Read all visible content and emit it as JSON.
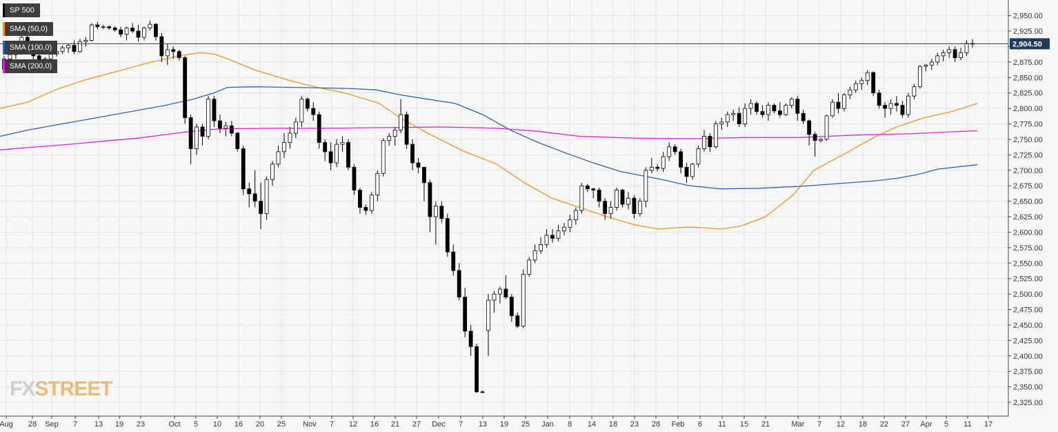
{
  "chart_data": {
    "type": "candlestick",
    "title": "SP 500",
    "current_price_label": "2,904.50",
    "current_price": 2904.5,
    "ylim": [
      2312,
      2968
    ],
    "y_ticks": [
      2325,
      2350,
      2375,
      2400,
      2425,
      2450,
      2475,
      2500,
      2525,
      2550,
      2575,
      2600,
      2625,
      2650,
      2675,
      2700,
      2725,
      2750,
      2775,
      2800,
      2825,
      2850,
      2875,
      2900,
      2925,
      2950
    ],
    "y_tick_labels": [
      "2,325.00",
      "2,350.00",
      "2,375.00",
      "2,400.00",
      "2,425.00",
      "2,450.00",
      "2,475.00",
      "2,500.00",
      "2,525.00",
      "2,550.00",
      "2,575.00",
      "2,600.00",
      "2,625.00",
      "2,650.00",
      "2,675.00",
      "2,700.00",
      "2,725.00",
      "2,750.00",
      "2,775.00",
      "2,800.00",
      "2,825.00",
      "2,850.00",
      "2,875.00",
      "2,900.00",
      "2,925.00",
      "2,950.00"
    ],
    "x_tick_labels": [
      "Aug",
      "28",
      "Sep",
      "7",
      "13",
      "19",
      "23",
      "Oct",
      "5",
      "10",
      "16",
      "20",
      "25",
      "Nov",
      "7",
      "12",
      "16",
      "21",
      "27",
      "Dec",
      "7",
      "13",
      "19",
      "25",
      "Jan",
      "8",
      "14",
      "18",
      "23",
      "28",
      "Feb",
      "6",
      "11",
      "15",
      "21",
      "Mar",
      "7",
      "12",
      "18",
      "22",
      "27",
      "Apr",
      "5",
      "11",
      "17"
    ],
    "grid": true,
    "legend_position": "top-left",
    "legend": [
      {
        "name": "SP 500",
        "color": "#000000"
      },
      {
        "name": "SMA (50,0)",
        "color": "#f7931e"
      },
      {
        "name": "SMA (100,0)",
        "color": "#2b62b8"
      },
      {
        "name": "SMA (200,0)",
        "color": "#e31ce3"
      }
    ],
    "colors": {
      "up": "#ffffff",
      "down": "#000000",
      "sma50": "#f7931e",
      "sma100": "#2b62b8",
      "sma200": "#e31ce3",
      "price_line": "#1f3a5f"
    },
    "ohlc": [
      [
        2863,
        2885,
        2858,
        2880
      ],
      [
        2880,
        2890,
        2872,
        2887
      ],
      [
        2887,
        2900,
        2880,
        2895
      ],
      [
        2895,
        2920,
        2890,
        2915
      ],
      [
        2915,
        2918,
        2895,
        2900
      ],
      [
        2900,
        2905,
        2878,
        2885
      ],
      [
        2885,
        2888,
        2865,
        2870
      ],
      [
        2870,
        2883,
        2866,
        2880
      ],
      [
        2880,
        2890,
        2875,
        2888
      ],
      [
        2888,
        2897,
        2884,
        2892
      ],
      [
        2892,
        2902,
        2888,
        2898
      ],
      [
        2898,
        2905,
        2890,
        2902
      ],
      [
        2902,
        2910,
        2888,
        2892
      ],
      [
        2892,
        2912,
        2890,
        2908
      ],
      [
        2908,
        2915,
        2900,
        2910
      ],
      [
        2910,
        2938,
        2908,
        2935
      ],
      [
        2935,
        2940,
        2928,
        2932
      ],
      [
        2932,
        2935,
        2928,
        2932
      ],
      [
        2932,
        2934,
        2927,
        2930
      ],
      [
        2930,
        2933,
        2924,
        2927
      ],
      [
        2927,
        2932,
        2915,
        2920
      ],
      [
        2920,
        2932,
        2910,
        2930
      ],
      [
        2930,
        2938,
        2922,
        2925
      ],
      [
        2925,
        2935,
        2908,
        2915
      ],
      [
        2915,
        2932,
        2910,
        2930
      ],
      [
        2930,
        2942,
        2926,
        2936
      ],
      [
        2936,
        2938,
        2910,
        2916
      ],
      [
        2916,
        2922,
        2875,
        2885
      ],
      [
        2885,
        2905,
        2870,
        2895
      ],
      [
        2895,
        2900,
        2880,
        2892
      ],
      [
        2892,
        2895,
        2878,
        2882
      ],
      [
        2882,
        2885,
        2775,
        2785
      ],
      [
        2785,
        2790,
        2710,
        2735
      ],
      [
        2735,
        2775,
        2725,
        2770
      ],
      [
        2770,
        2775,
        2740,
        2755
      ],
      [
        2755,
        2820,
        2750,
        2815
      ],
      [
        2815,
        2820,
        2770,
        2780
      ],
      [
        2780,
        2790,
        2760,
        2768
      ],
      [
        2768,
        2778,
        2755,
        2772
      ],
      [
        2772,
        2780,
        2755,
        2760
      ],
      [
        2760,
        2762,
        2730,
        2735
      ],
      [
        2735,
        2740,
        2660,
        2670
      ],
      [
        2670,
        2680,
        2640,
        2662
      ],
      [
        2662,
        2700,
        2640,
        2650
      ],
      [
        2650,
        2680,
        2605,
        2630
      ],
      [
        2630,
        2690,
        2620,
        2685
      ],
      [
        2685,
        2715,
        2675,
        2710
      ],
      [
        2710,
        2740,
        2705,
        2730
      ],
      [
        2730,
        2760,
        2720,
        2745
      ],
      [
        2745,
        2770,
        2735,
        2760
      ],
      [
        2760,
        2785,
        2752,
        2778
      ],
      [
        2778,
        2820,
        2770,
        2815
      ],
      [
        2815,
        2818,
        2795,
        2800
      ],
      [
        2800,
        2810,
        2780,
        2790
      ],
      [
        2790,
        2795,
        2735,
        2745
      ],
      [
        2745,
        2750,
        2715,
        2730
      ],
      [
        2730,
        2745,
        2700,
        2712
      ],
      [
        2712,
        2750,
        2705,
        2742
      ],
      [
        2742,
        2755,
        2730,
        2745
      ],
      [
        2745,
        2750,
        2700,
        2705
      ],
      [
        2705,
        2710,
        2660,
        2668
      ],
      [
        2668,
        2672,
        2630,
        2640
      ],
      [
        2640,
        2645,
        2628,
        2635
      ],
      [
        2635,
        2665,
        2630,
        2660
      ],
      [
        2660,
        2700,
        2650,
        2695
      ],
      [
        2695,
        2752,
        2690,
        2748
      ],
      [
        2748,
        2760,
        2740,
        2755
      ],
      [
        2755,
        2770,
        2740,
        2765
      ],
      [
        2765,
        2815,
        2760,
        2790
      ],
      [
        2790,
        2795,
        2735,
        2742
      ],
      [
        2742,
        2750,
        2700,
        2712
      ],
      [
        2712,
        2720,
        2695,
        2705
      ],
      [
        2705,
        2700,
        2650,
        2680
      ],
      [
        2680,
        2685,
        2600,
        2625
      ],
      [
        2625,
        2650,
        2580,
        2642
      ],
      [
        2642,
        2650,
        2615,
        2622
      ],
      [
        2622,
        2630,
        2560,
        2568
      ],
      [
        2568,
        2580,
        2530,
        2538
      ],
      [
        2538,
        2550,
        2490,
        2495
      ],
      [
        2495,
        2510,
        2430,
        2440
      ],
      [
        2440,
        2450,
        2400,
        2415
      ],
      [
        2415,
        2420,
        2340,
        2342
      ],
      [
        2342,
        2344,
        2340,
        2341
      ],
      [
        2441,
        2500,
        2400,
        2490
      ],
      [
        2490,
        2505,
        2470,
        2500
      ],
      [
        2500,
        2512,
        2485,
        2508
      ],
      [
        2508,
        2530,
        2492,
        2495
      ],
      [
        2495,
        2500,
        2455,
        2465
      ],
      [
        2465,
        2470,
        2445,
        2448
      ],
      [
        2448,
        2540,
        2445,
        2532
      ],
      [
        2532,
        2560,
        2528,
        2555
      ],
      [
        2555,
        2580,
        2550,
        2570
      ],
      [
        2570,
        2592,
        2565,
        2580
      ],
      [
        2580,
        2605,
        2575,
        2595
      ],
      [
        2595,
        2605,
        2583,
        2590
      ],
      [
        2590,
        2612,
        2585,
        2602
      ],
      [
        2602,
        2615,
        2595,
        2608
      ],
      [
        2608,
        2628,
        2600,
        2620
      ],
      [
        2620,
        2640,
        2612,
        2635
      ],
      [
        2635,
        2680,
        2630,
        2675
      ],
      [
        2675,
        2678,
        2665,
        2670
      ],
      [
        2670,
        2672,
        2655,
        2668
      ],
      [
        2668,
        2672,
        2640,
        2650
      ],
      [
        2650,
        2655,
        2620,
        2630
      ],
      [
        2630,
        2650,
        2622,
        2640
      ],
      [
        2640,
        2672,
        2635,
        2668
      ],
      [
        2668,
        2670,
        2640,
        2645
      ],
      [
        2645,
        2665,
        2637,
        2655
      ],
      [
        2655,
        2660,
        2622,
        2630
      ],
      [
        2630,
        2655,
        2625,
        2650
      ],
      [
        2650,
        2705,
        2640,
        2700
      ],
      [
        2700,
        2720,
        2695,
        2705
      ],
      [
        2705,
        2710,
        2698,
        2703
      ],
      [
        2703,
        2730,
        2697,
        2722
      ],
      [
        2722,
        2745,
        2715,
        2738
      ],
      [
        2738,
        2742,
        2725,
        2730
      ],
      [
        2730,
        2735,
        2695,
        2705
      ],
      [
        2705,
        2712,
        2680,
        2690
      ],
      [
        2690,
        2712,
        2685,
        2710
      ],
      [
        2710,
        2740,
        2705,
        2735
      ],
      [
        2735,
        2765,
        2730,
        2755
      ],
      [
        2755,
        2760,
        2730,
        2738
      ],
      [
        2738,
        2780,
        2735,
        2775
      ],
      [
        2775,
        2785,
        2765,
        2778
      ],
      [
        2778,
        2795,
        2770,
        2790
      ],
      [
        2790,
        2798,
        2780,
        2792
      ],
      [
        2792,
        2802,
        2770,
        2775
      ],
      [
        2775,
        2808,
        2770,
        2800
      ],
      [
        2800,
        2815,
        2790,
        2808
      ],
      [
        2808,
        2812,
        2790,
        2795
      ],
      [
        2795,
        2805,
        2785,
        2790
      ],
      [
        2790,
        2810,
        2780,
        2805
      ],
      [
        2805,
        2808,
        2792,
        2796
      ],
      [
        2796,
        2810,
        2785,
        2790
      ],
      [
        2790,
        2808,
        2788,
        2805
      ],
      [
        2805,
        2818,
        2800,
        2815
      ],
      [
        2815,
        2820,
        2780,
        2792
      ],
      [
        2792,
        2798,
        2775,
        2780
      ],
      [
        2780,
        2782,
        2740,
        2758
      ],
      [
        2758,
        2762,
        2722,
        2748
      ],
      [
        2748,
        2752,
        2745,
        2750
      ],
      [
        2750,
        2790,
        2748,
        2788
      ],
      [
        2788,
        2815,
        2785,
        2810
      ],
      [
        2810,
        2825,
        2792,
        2800
      ],
      [
        2800,
        2825,
        2795,
        2822
      ],
      [
        2822,
        2835,
        2815,
        2830
      ],
      [
        2830,
        2845,
        2825,
        2840
      ],
      [
        2840,
        2850,
        2830,
        2845
      ],
      [
        2845,
        2862,
        2838,
        2858
      ],
      [
        2858,
        2860,
        2820,
        2825
      ],
      [
        2825,
        2830,
        2800,
        2805
      ],
      [
        2805,
        2810,
        2785,
        2800
      ],
      [
        2800,
        2815,
        2790,
        2808
      ],
      [
        2808,
        2820,
        2795,
        2805
      ],
      [
        2805,
        2812,
        2785,
        2790
      ],
      [
        2790,
        2825,
        2785,
        2820
      ],
      [
        2820,
        2840,
        2815,
        2835
      ],
      [
        2835,
        2870,
        2832,
        2868
      ],
      [
        2868,
        2872,
        2860,
        2870
      ],
      [
        2870,
        2880,
        2862,
        2875
      ],
      [
        2875,
        2890,
        2870,
        2885
      ],
      [
        2885,
        2895,
        2876,
        2890
      ],
      [
        2890,
        2900,
        2882,
        2895
      ],
      [
        2895,
        2900,
        2875,
        2882
      ],
      [
        2882,
        2898,
        2878,
        2890
      ],
      [
        2890,
        2910,
        2885,
        2905
      ],
      [
        2905,
        2912,
        2898,
        2904
      ]
    ],
    "sma50": [
      [
        2806,
        2795
      ],
      [
        2795,
        2800
      ],
      [
        2783,
        2810
      ],
      [
        2769,
        2820
      ],
      [
        2756,
        2830
      ],
      [
        2743,
        2840
      ],
      [
        2730,
        2850
      ],
      [
        2716,
        2860
      ],
      [
        2703,
        2870
      ],
      [
        2688,
        2882
      ],
      [
        2675,
        2890
      ],
      [
        2662,
        2895
      ],
      [
        2648,
        2885
      ],
      [
        2635,
        2862
      ],
      [
        2622,
        2835
      ],
      [
        2608,
        2800
      ],
      [
        2595,
        2765
      ],
      [
        2582,
        2728
      ],
      [
        2568,
        2690
      ],
      [
        2555,
        2655
      ],
      [
        2542,
        2625
      ],
      [
        2528,
        2605
      ],
      [
        2515,
        2610
      ],
      [
        2502,
        2630
      ],
      [
        2488,
        2665
      ],
      [
        2475,
        2700
      ],
      [
        2462,
        2735
      ],
      [
        2448,
        2765
      ],
      [
        2435,
        2790
      ],
      [
        2422,
        2808
      ]
    ],
    "sma100": [
      [
        2755,
        0
      ],
      [
        2765,
        40
      ],
      [
        2775,
        90
      ],
      [
        2785,
        140
      ],
      [
        2795,
        190
      ],
      [
        2805,
        240
      ],
      [
        2815,
        280
      ],
      [
        2825,
        310
      ],
      [
        2834,
        330
      ],
      [
        2835,
        370
      ],
      [
        2834,
        420
      ],
      [
        2833,
        470
      ],
      [
        2832,
        510
      ],
      [
        2830,
        545
      ],
      [
        2822,
        580
      ],
      [
        2815,
        620
      ],
      [
        2808,
        660
      ],
      [
        2790,
        700
      ],
      [
        2765,
        740
      ],
      [
        2745,
        780
      ],
      [
        2728,
        820
      ],
      [
        2712,
        860
      ],
      [
        2698,
        900
      ],
      [
        2685,
        960
      ],
      [
        2675,
        1000
      ],
      [
        2670,
        1045
      ],
      [
        2671,
        1100
      ],
      [
        2674,
        1160
      ],
      [
        2679,
        1220
      ],
      [
        2683,
        1270
      ],
      [
        2687,
        1300
      ],
      [
        2693,
        1330
      ],
      [
        2702,
        1360
      ],
      [
        2709,
        1417
      ]
    ],
    "sma200": [
      [
        2733,
        0
      ],
      [
        2742,
        100
      ],
      [
        2752,
        200
      ],
      [
        2762,
        270
      ],
      [
        2767,
        320
      ],
      [
        2768,
        400
      ],
      [
        2768,
        480
      ],
      [
        2769,
        560
      ],
      [
        2770,
        640
      ],
      [
        2768,
        720
      ],
      [
        2763,
        780
      ],
      [
        2755,
        840
      ],
      [
        2752,
        920
      ],
      [
        2751,
        1000
      ],
      [
        2753,
        1080
      ],
      [
        2753,
        1160
      ],
      [
        2757,
        1240
      ],
      [
        2759,
        1320
      ],
      [
        2764,
        1417
      ]
    ]
  }
}
